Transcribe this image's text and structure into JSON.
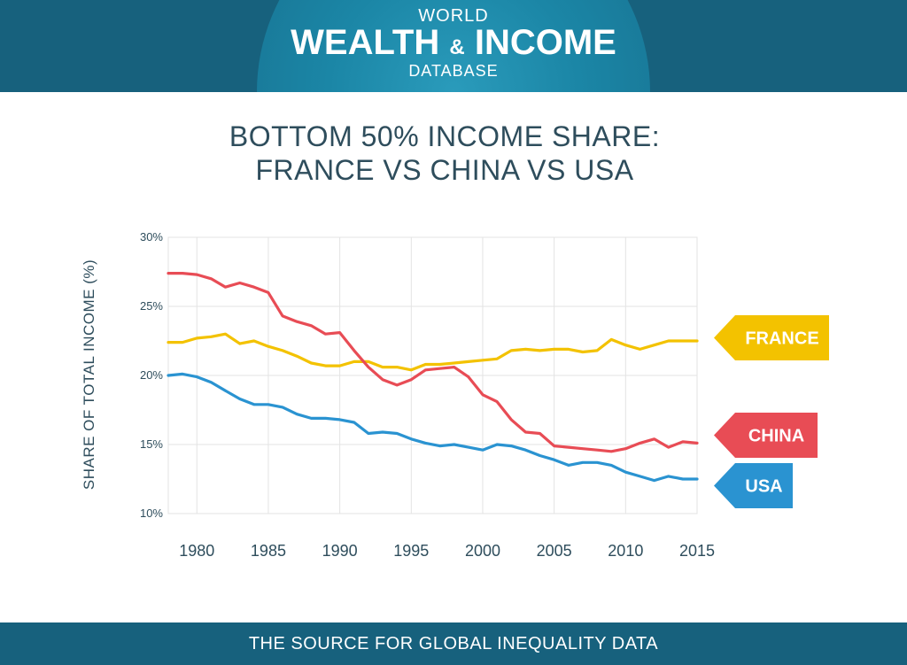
{
  "header": {
    "logo_top": "WORLD",
    "logo_main_left": "WEALTH",
    "logo_amp": "&",
    "logo_main_right": "INCOME",
    "logo_bottom": "DATABASE"
  },
  "footer": {
    "tagline": "THE SOURCE FOR GLOBAL INEQUALITY DATA"
  },
  "chart_data": {
    "type": "line",
    "title": "BOTTOM 50% INCOME SHARE:",
    "subtitle": "FRANCE VS CHINA VS USA",
    "xlabel": "",
    "ylabel": "SHARE OF TOTAL INCOME (%)",
    "xlim": [
      1978,
      2015
    ],
    "ylim": [
      10,
      30
    ],
    "yticks": [
      30,
      25,
      20,
      15,
      10
    ],
    "ytick_labels": [
      "30%",
      "25%",
      "20%",
      "15%",
      "10%"
    ],
    "xticks": [
      1980,
      1985,
      1990,
      1995,
      2000,
      2005,
      2010,
      2015
    ],
    "xtick_labels": [
      "1980",
      "1985",
      "1990",
      "1995",
      "2000",
      "2005",
      "2010",
      "2015"
    ],
    "grid": true,
    "legend_placement": "right",
    "x": [
      1978,
      1979,
      1980,
      1981,
      1982,
      1983,
      1984,
      1985,
      1986,
      1987,
      1988,
      1989,
      1990,
      1991,
      1992,
      1993,
      1994,
      1995,
      1996,
      1997,
      1998,
      1999,
      2000,
      2001,
      2002,
      2003,
      2004,
      2005,
      2006,
      2007,
      2008,
      2009,
      2010,
      2011,
      2012,
      2013,
      2014,
      2015
    ],
    "series": [
      {
        "name": "FRANCE",
        "color": "#f3c200",
        "values": [
          22.4,
          22.4,
          22.7,
          22.8,
          23.0,
          22.3,
          22.5,
          22.1,
          21.8,
          21.4,
          20.9,
          20.7,
          20.7,
          21.0,
          21.0,
          20.6,
          20.6,
          20.4,
          20.8,
          20.8,
          20.9,
          21.0,
          21.1,
          21.2,
          21.8,
          21.9,
          21.8,
          21.9,
          21.9,
          21.7,
          21.8,
          22.6,
          22.2,
          21.9,
          22.2,
          22.5,
          22.5,
          22.5
        ]
      },
      {
        "name": "CHINA",
        "color": "#e84c55",
        "values": [
          27.4,
          27.4,
          27.3,
          27.0,
          26.4,
          26.7,
          26.4,
          26.0,
          24.3,
          23.9,
          23.6,
          23.0,
          23.1,
          21.8,
          20.6,
          19.7,
          19.3,
          19.7,
          20.4,
          20.5,
          20.6,
          19.9,
          18.6,
          18.1,
          16.8,
          15.9,
          15.8,
          14.9,
          14.8,
          14.7,
          14.6,
          14.5,
          14.7,
          15.1,
          15.4,
          14.8,
          15.2,
          15.1
        ]
      },
      {
        "name": "USA",
        "color": "#2a93d1",
        "values": [
          20.0,
          20.1,
          19.9,
          19.5,
          18.9,
          18.3,
          17.9,
          17.9,
          17.7,
          17.2,
          16.9,
          16.9,
          16.8,
          16.6,
          15.8,
          15.9,
          15.8,
          15.4,
          15.1,
          14.9,
          15.0,
          14.8,
          14.6,
          15.0,
          14.9,
          14.6,
          14.2,
          13.9,
          13.5,
          13.7,
          13.7,
          13.5,
          13.0,
          12.7,
          12.4,
          12.7,
          12.5,
          12.5
        ]
      }
    ]
  }
}
